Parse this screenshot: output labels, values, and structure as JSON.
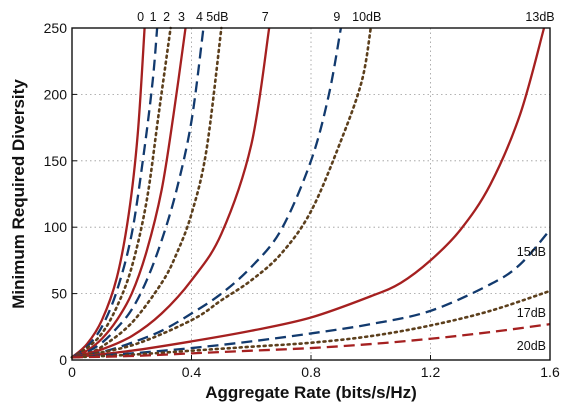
{
  "chart_data": {
    "type": "line",
    "xlabel": "Aggregate Rate (bits/s/Hz)",
    "ylabel": "Minimum Required Diversity",
    "xlim": [
      0,
      1.6
    ],
    "ylim": [
      0,
      250
    ],
    "x_ticks": [
      "0",
      "0.4",
      "0.8",
      "1.2",
      "1.6"
    ],
    "y_ticks": [
      "0",
      "50",
      "100",
      "150",
      "200",
      "250"
    ],
    "grid": true,
    "colors": {
      "solid": "#a52020",
      "dashed": "#123a6e",
      "dotted": "#5c3f1c"
    },
    "series": [
      {
        "label": "0",
        "style": "solid",
        "color": "#a52020",
        "points": [
          [
            0,
            2
          ],
          [
            0.05,
            12
          ],
          [
            0.1,
            30
          ],
          [
            0.15,
            62
          ],
          [
            0.19,
            110
          ],
          [
            0.22,
            170
          ],
          [
            0.243,
            250
          ]
        ]
      },
      {
        "label": "1",
        "style": "dashed",
        "color": "#123a6e",
        "points": [
          [
            0,
            2
          ],
          [
            0.05,
            10
          ],
          [
            0.1,
            25
          ],
          [
            0.15,
            52
          ],
          [
            0.2,
            95
          ],
          [
            0.24,
            155
          ],
          [
            0.27,
            210
          ],
          [
            0.285,
            250
          ]
        ]
      },
      {
        "label": "2",
        "style": "dotted",
        "color": "#5c3f1c",
        "points": [
          [
            0,
            2
          ],
          [
            0.05,
            9
          ],
          [
            0.1,
            20
          ],
          [
            0.15,
            40
          ],
          [
            0.2,
            70
          ],
          [
            0.25,
            120
          ],
          [
            0.29,
            185
          ],
          [
            0.33,
            250
          ]
        ]
      },
      {
        "label": "3",
        "style": "solid",
        "color": "#a52020",
        "points": [
          [
            0,
            2
          ],
          [
            0.05,
            7
          ],
          [
            0.1,
            16
          ],
          [
            0.15,
            30
          ],
          [
            0.2,
            50
          ],
          [
            0.25,
            82
          ],
          [
            0.3,
            128
          ],
          [
            0.34,
            185
          ],
          [
            0.38,
            250
          ]
        ]
      },
      {
        "label": "4",
        "style": "dashed",
        "color": "#123a6e",
        "points": [
          [
            0,
            2
          ],
          [
            0.05,
            6
          ],
          [
            0.1,
            13
          ],
          [
            0.15,
            24
          ],
          [
            0.2,
            38
          ],
          [
            0.25,
            60
          ],
          [
            0.3,
            90
          ],
          [
            0.35,
            128
          ],
          [
            0.4,
            180
          ],
          [
            0.44,
            250
          ]
        ]
      },
      {
        "label": "5dB",
        "style": "dotted",
        "color": "#5c3f1c",
        "points": [
          [
            0,
            2
          ],
          [
            0.05,
            5
          ],
          [
            0.1,
            10
          ],
          [
            0.2,
            28
          ],
          [
            0.3,
            58
          ],
          [
            0.35,
            80
          ],
          [
            0.4,
            110
          ],
          [
            0.45,
            158
          ],
          [
            0.5,
            250
          ]
        ]
      },
      {
        "label": "7",
        "style": "solid",
        "color": "#a52020",
        "points": [
          [
            0,
            2
          ],
          [
            0.1,
            8
          ],
          [
            0.2,
            18
          ],
          [
            0.3,
            35
          ],
          [
            0.4,
            60
          ],
          [
            0.5,
            95
          ],
          [
            0.6,
            162
          ],
          [
            0.66,
            250
          ]
        ]
      },
      {
        "label": "9",
        "style": "dashed",
        "color": "#123a6e",
        "points": [
          [
            0,
            2
          ],
          [
            0.1,
            6
          ],
          [
            0.2,
            13
          ],
          [
            0.3,
            22
          ],
          [
            0.4,
            35
          ],
          [
            0.5,
            50
          ],
          [
            0.6,
            70
          ],
          [
            0.7,
            98
          ],
          [
            0.8,
            150
          ],
          [
            0.86,
            200
          ],
          [
            0.9,
            250
          ]
        ]
      },
      {
        "label": "10dB",
        "style": "dotted",
        "color": "#5c3f1c",
        "points": [
          [
            0,
            2
          ],
          [
            0.2,
            11
          ],
          [
            0.4,
            30
          ],
          [
            0.5,
            45
          ],
          [
            0.6,
            60
          ],
          [
            0.7,
            80
          ],
          [
            0.8,
            112
          ],
          [
            0.9,
            165
          ],
          [
            0.97,
            210
          ],
          [
            1.0,
            250
          ]
        ]
      },
      {
        "label": "13dB",
        "style": "solid",
        "color": "#a52020",
        "points": [
          [
            0,
            2
          ],
          [
            0.2,
            7
          ],
          [
            0.4,
            14
          ],
          [
            0.6,
            22
          ],
          [
            0.8,
            32
          ],
          [
            1.0,
            48
          ],
          [
            1.1,
            58
          ],
          [
            1.2,
            75
          ],
          [
            1.3,
            98
          ],
          [
            1.4,
            132
          ],
          [
            1.5,
            185
          ],
          [
            1.58,
            250
          ]
        ]
      },
      {
        "label": "15dB",
        "style": "dashed",
        "color": "#123a6e",
        "points": [
          [
            0,
            2
          ],
          [
            0.2,
            5
          ],
          [
            0.4,
            9
          ],
          [
            0.6,
            14
          ],
          [
            0.8,
            20
          ],
          [
            1.0,
            27
          ],
          [
            1.2,
            37
          ],
          [
            1.4,
            57
          ],
          [
            1.5,
            72
          ],
          [
            1.6,
            98
          ]
        ]
      },
      {
        "label": "17dB",
        "style": "dotted",
        "color": "#5c3f1c",
        "points": [
          [
            0,
            2
          ],
          [
            0.2,
            4
          ],
          [
            0.4,
            7
          ],
          [
            0.6,
            10
          ],
          [
            0.8,
            13
          ],
          [
            1.0,
            18
          ],
          [
            1.2,
            26
          ],
          [
            1.4,
            37
          ],
          [
            1.6,
            52
          ]
        ]
      },
      {
        "label": "20dB",
        "style": "dashed",
        "color": "#a52020",
        "points": [
          [
            0,
            2
          ],
          [
            0.2,
            3
          ],
          [
            0.4,
            5
          ],
          [
            0.6,
            7
          ],
          [
            0.8,
            9
          ],
          [
            1.0,
            12
          ],
          [
            1.2,
            16
          ],
          [
            1.4,
            21
          ],
          [
            1.6,
            27
          ]
        ]
      }
    ]
  }
}
